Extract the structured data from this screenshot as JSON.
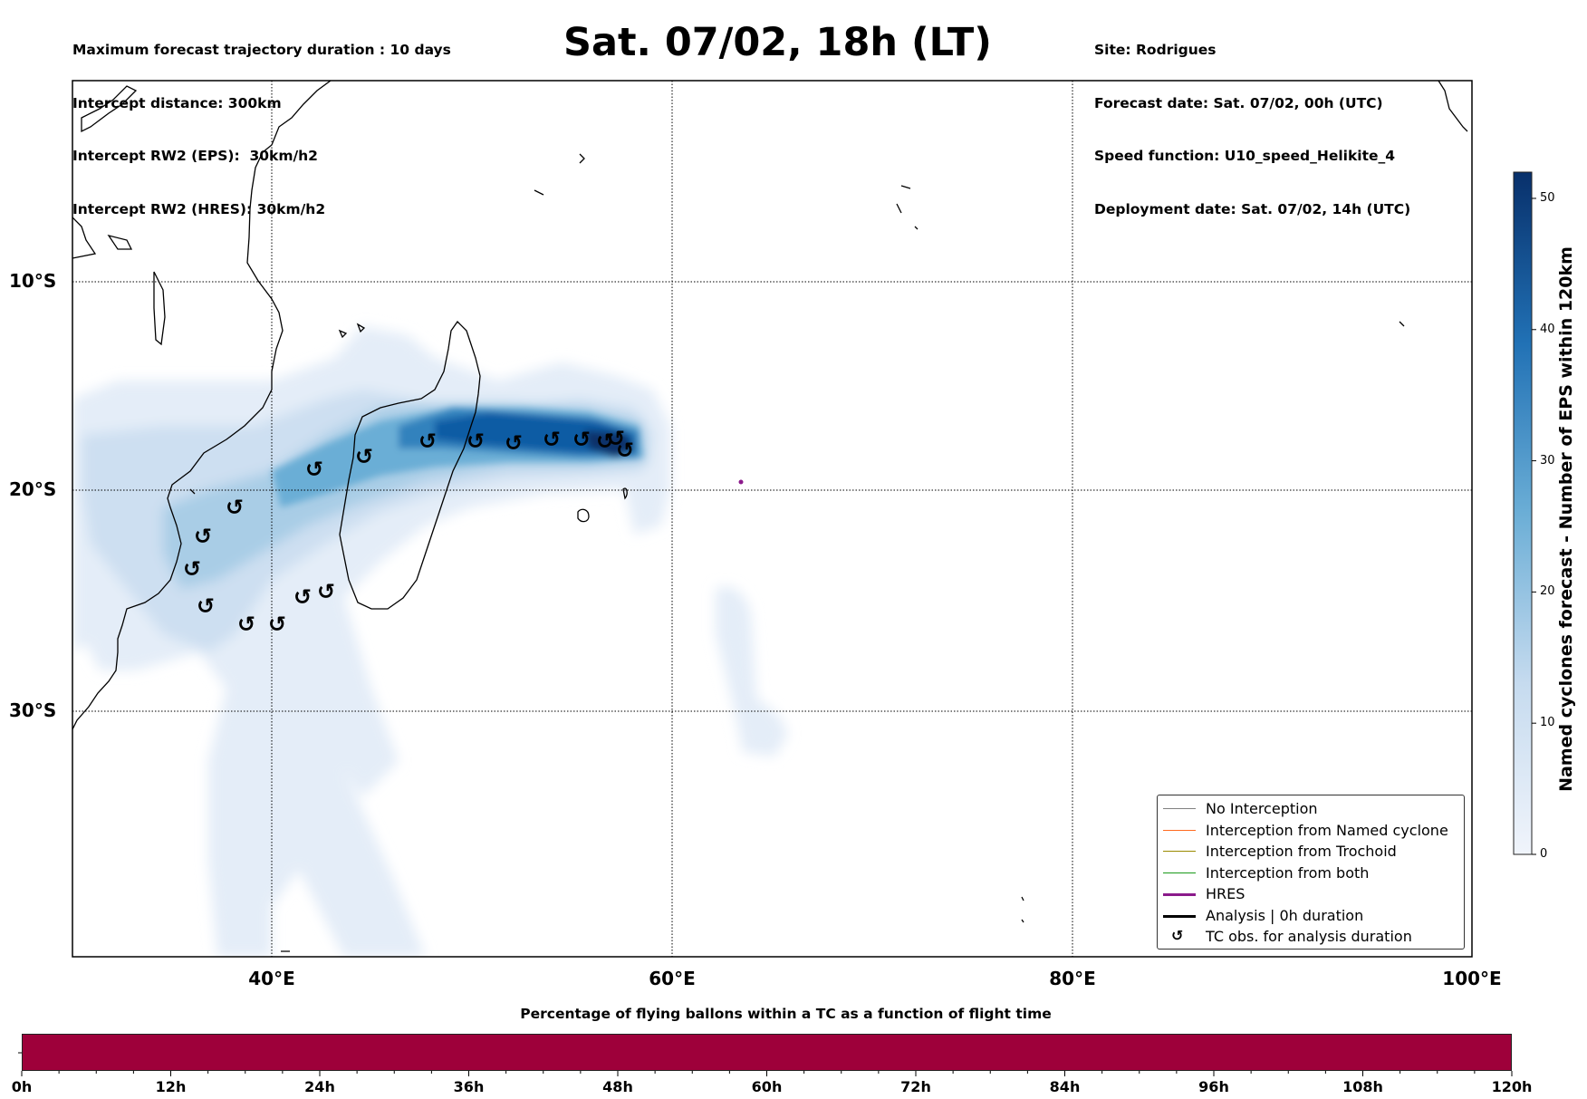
{
  "header": {
    "left_lines": [
      "Maximum forecast trajectory duration : 10 days",
      "Intercept distance: 300km",
      "Intercept RW2 (EPS):  30km/h2",
      "Intercept RW2 (HRES): 30km/h2"
    ],
    "title": "Sat. 07/02, 18h (LT)",
    "right_lines": [
      "Site: Rodrigues",
      "Forecast date: Sat. 07/02, 00h (UTC)",
      "Speed function: U10_speed_Helikite_4",
      "Deployment date: Sat. 07/02, 14h (UTC)"
    ]
  },
  "map": {
    "lat_labels": [
      "10°S",
      "20°S",
      "30°S"
    ],
    "lon_labels": [
      "40°E",
      "60°E",
      "80°E",
      "100°E"
    ],
    "tc_symbol": "↺",
    "tc_obs_count": 17,
    "hres_point_color": "#8b1a8b",
    "coastline_color": "#000000",
    "density_colors": [
      "#e4edf8",
      "#cddff1",
      "#a9cde6",
      "#6baed6",
      "#3182bd",
      "#105ba4",
      "#08306b"
    ]
  },
  "legend": {
    "items": [
      {
        "label": "No Interception",
        "color": "#808080",
        "width": 1
      },
      {
        "label": "Interception from Named cyclone",
        "color": "#ff6a20",
        "width": 1
      },
      {
        "label": "Interception from Trochoid",
        "color": "#9a8a00",
        "width": 1
      },
      {
        "label": "Interception from both",
        "color": "#1a9a1a",
        "width": 1
      },
      {
        "label": "HRES",
        "color": "#8b1a8b",
        "width": 3
      },
      {
        "label": "Analysis | 0h duration",
        "color": "#000000",
        "width": 3
      },
      {
        "label": "TC obs. for analysis duration",
        "color": "",
        "width": 0
      }
    ]
  },
  "colorbar_right": {
    "title": "Named cyclones forecast - Number of EPS within 120km",
    "ticks": [
      "0",
      "10",
      "20",
      "30",
      "40",
      "50"
    ],
    "tick_values": [
      0,
      10,
      20,
      30,
      40,
      50
    ],
    "max": 52,
    "color_low": "#f0f4fb",
    "color_high": "#08306b"
  },
  "colorbar_bottom": {
    "title": "Percentage of flying ballons within a TC as a function of flight time",
    "ticks": [
      "0h",
      "12h",
      "24h",
      "36h",
      "48h",
      "60h",
      "72h",
      "84h",
      "96h",
      "108h",
      "120h"
    ],
    "tick_hours": [
      0,
      12,
      24,
      36,
      48,
      60,
      72,
      84,
      96,
      108,
      120
    ],
    "fill_color": "#9e003a"
  }
}
